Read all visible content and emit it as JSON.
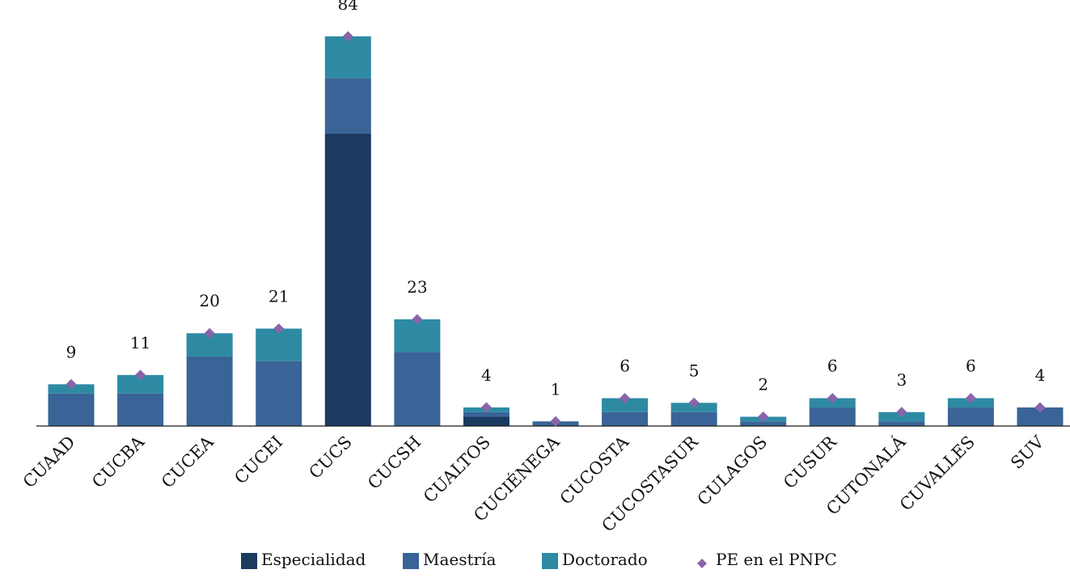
{
  "chart_data": {
    "type": "bar",
    "stacked": true,
    "title": "",
    "xlabel": "",
    "ylabel": "",
    "ylim": [
      0,
      84
    ],
    "grid": false,
    "legend_position": "bottom",
    "categories": [
      "CUAAD",
      "CUCBA",
      "CUCEA",
      "CUCEI",
      "CUCS",
      "CUCSH",
      "CUALTOS",
      "CUCIÉNEGA",
      "CUCOSTA",
      "CUCOSTASUR",
      "CULAGOS",
      "CUSUR",
      "CUTONALÁ",
      "CUVALLES",
      "SUV"
    ],
    "series": [
      {
        "name": "Especialidad",
        "color": "#1b3a5f",
        "values": [
          0,
          0,
          0,
          0,
          63,
          0,
          2,
          0,
          0,
          0,
          0,
          0,
          0,
          0,
          0
        ]
      },
      {
        "name": "Maestría",
        "color": "#3a6497",
        "values": [
          7,
          7,
          15,
          14,
          12,
          16,
          1,
          1,
          3,
          3,
          1,
          4,
          1,
          4,
          4
        ]
      },
      {
        "name": "Doctorado",
        "color": "#2e8aa3",
        "values": [
          2,
          4,
          5,
          7,
          9,
          7,
          1,
          0,
          3,
          2,
          1,
          2,
          2,
          2,
          0
        ]
      }
    ],
    "marker_series": {
      "name": "PE en el PNPC",
      "color": "#8a64aa",
      "values": [
        9,
        11,
        20,
        21,
        84,
        23,
        4,
        1,
        6,
        5,
        2,
        6,
        3,
        6,
        4
      ]
    },
    "totals": [
      "9",
      "11",
      "20",
      "21",
      "84",
      "23",
      "4",
      "1",
      "6",
      "5",
      "2",
      "6",
      "3",
      "6",
      "4"
    ]
  }
}
